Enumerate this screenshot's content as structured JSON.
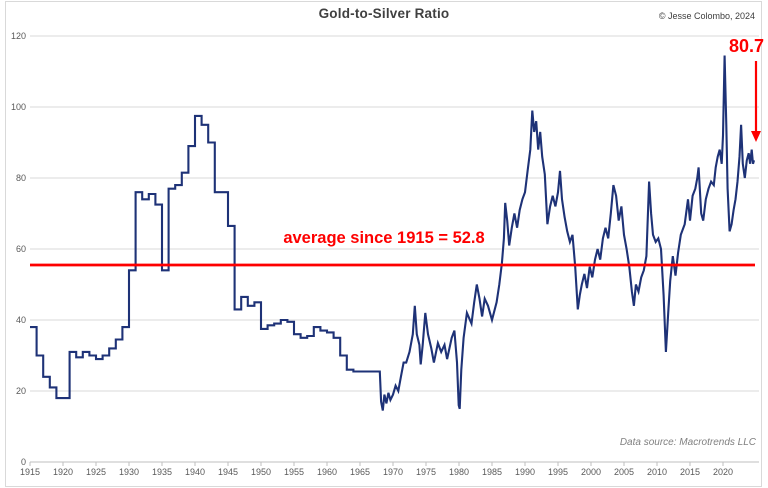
{
  "header": {
    "title": "Gold-to-Silver Ratio",
    "copyright": "© Jesse Colombo, 2024"
  },
  "annotations": {
    "average_label": "average since 1915 = 52.8",
    "latest_label": "80.7"
  },
  "footer": {
    "source": "Data source: Macrotrends LLC"
  },
  "colors": {
    "line": "#1e3277",
    "accent_red": "#fe0000",
    "grid": "#d9d9d9",
    "tick": "#bfbfbf",
    "axis_text": "#595959"
  },
  "chart_data": {
    "type": "line",
    "title": "Gold-to-Silver Ratio",
    "xlabel": "",
    "ylabel": "",
    "xlim": [
      1915,
      2025.2
    ],
    "ylim": [
      0,
      120
    ],
    "grid": "horizontal",
    "legend": "none",
    "x_ticks": [
      1915,
      1920,
      1925,
      1930,
      1935,
      1940,
      1945,
      1950,
      1955,
      1960,
      1965,
      1970,
      1975,
      1980,
      1985,
      1990,
      1995,
      2000,
      2005,
      2010,
      2015,
      2020
    ],
    "y_ticks": [
      0,
      20,
      40,
      60,
      80,
      100,
      120
    ],
    "average_line": {
      "value": 52.8,
      "display_value": 55.5,
      "label": "average since 1915 = 52.8"
    },
    "latest_value": 80.7,
    "annual_series_start": 1915,
    "annual_series": [
      38,
      30,
      24,
      21,
      18,
      18,
      31,
      29.5,
      31,
      30,
      29,
      30,
      32,
      34.5,
      38,
      54,
      76,
      74,
      75.5,
      72.5,
      54,
      77,
      78,
      81.5,
      89,
      97.5,
      95,
      90,
      76,
      76,
      66.5,
      43,
      46.5,
      44,
      45,
      37.5,
      38.5,
      39,
      40,
      39.5,
      36,
      35,
      35.5,
      38,
      37,
      36.5,
      35,
      30,
      26,
      25.5,
      25.5,
      25.5,
      25.5
    ],
    "monthly_series": [
      [
        1968.0,
        25.5
      ],
      [
        1968.2,
        17
      ],
      [
        1968.45,
        14.5
      ],
      [
        1968.7,
        19
      ],
      [
        1969.0,
        16.5
      ],
      [
        1969.3,
        19.5
      ],
      [
        1969.6,
        17.5
      ],
      [
        1970.0,
        19
      ],
      [
        1970.4,
        21.5
      ],
      [
        1970.8,
        20
      ],
      [
        1971.2,
        24
      ],
      [
        1971.6,
        28
      ],
      [
        1972.0,
        28
      ],
      [
        1972.5,
        31
      ],
      [
        1973.0,
        36
      ],
      [
        1973.3,
        44
      ],
      [
        1973.6,
        36
      ],
      [
        1974.0,
        33
      ],
      [
        1974.2,
        27.5
      ],
      [
        1974.5,
        33
      ],
      [
        1974.9,
        42
      ],
      [
        1975.3,
        36
      ],
      [
        1975.8,
        32
      ],
      [
        1976.2,
        28
      ],
      [
        1976.8,
        33.5
      ],
      [
        1977.3,
        31
      ],
      [
        1977.8,
        33
      ],
      [
        1978.2,
        29
      ],
      [
        1978.9,
        35
      ],
      [
        1979.3,
        37
      ],
      [
        1979.7,
        28
      ],
      [
        1979.95,
        16
      ],
      [
        1980.1,
        15
      ],
      [
        1980.35,
        26
      ],
      [
        1980.7,
        35
      ],
      [
        1981.2,
        42
      ],
      [
        1981.9,
        39
      ],
      [
        1982.3,
        45
      ],
      [
        1982.7,
        50
      ],
      [
        1983.1,
        46
      ],
      [
        1983.5,
        41
      ],
      [
        1983.9,
        46
      ],
      [
        1984.4,
        44
      ],
      [
        1985.0,
        40
      ],
      [
        1985.7,
        45
      ],
      [
        1986.1,
        50
      ],
      [
        1986.5,
        56
      ],
      [
        1986.8,
        63
      ],
      [
        1987.0,
        73
      ],
      [
        1987.3,
        68
      ],
      [
        1987.6,
        61
      ],
      [
        1988.0,
        66
      ],
      [
        1988.4,
        70
      ],
      [
        1988.8,
        66
      ],
      [
        1989.2,
        71
      ],
      [
        1989.6,
        74
      ],
      [
        1990.0,
        76
      ],
      [
        1990.4,
        82
      ],
      [
        1990.8,
        88
      ],
      [
        1991.1,
        99
      ],
      [
        1991.4,
        93
      ],
      [
        1991.7,
        96
      ],
      [
        1992.0,
        88
      ],
      [
        1992.3,
        93
      ],
      [
        1992.6,
        86
      ],
      [
        1993.0,
        81
      ],
      [
        1993.4,
        67
      ],
      [
        1993.8,
        72
      ],
      [
        1994.2,
        75
      ],
      [
        1994.6,
        72
      ],
      [
        1995.0,
        76
      ],
      [
        1995.3,
        82
      ],
      [
        1995.6,
        74
      ],
      [
        1996.0,
        69
      ],
      [
        1996.4,
        65
      ],
      [
        1996.8,
        62
      ],
      [
        1997.2,
        64
      ],
      [
        1997.6,
        55
      ],
      [
        1998.0,
        43
      ],
      [
        1998.3,
        47
      ],
      [
        1998.6,
        50
      ],
      [
        1999.0,
        53
      ],
      [
        1999.4,
        49
      ],
      [
        1999.8,
        55
      ],
      [
        2000.2,
        52
      ],
      [
        2000.6,
        57
      ],
      [
        2001.0,
        60
      ],
      [
        2001.4,
        57
      ],
      [
        2001.8,
        63
      ],
      [
        2002.2,
        66
      ],
      [
        2002.6,
        63
      ],
      [
        2003.0,
        70
      ],
      [
        2003.4,
        78
      ],
      [
        2003.8,
        75
      ],
      [
        2004.2,
        68
      ],
      [
        2004.6,
        72
      ],
      [
        2005.0,
        64
      ],
      [
        2005.4,
        60
      ],
      [
        2005.8,
        55
      ],
      [
        2006.2,
        48
      ],
      [
        2006.5,
        44
      ],
      [
        2006.8,
        50
      ],
      [
        2007.2,
        48
      ],
      [
        2007.6,
        52
      ],
      [
        2008.0,
        54
      ],
      [
        2008.4,
        58
      ],
      [
        2008.8,
        79
      ],
      [
        2009.1,
        70
      ],
      [
        2009.4,
        64
      ],
      [
        2009.8,
        62
      ],
      [
        2010.2,
        63
      ],
      [
        2010.6,
        60
      ],
      [
        2011.0,
        47
      ],
      [
        2011.35,
        31
      ],
      [
        2011.7,
        42
      ],
      [
        2012.0,
        51
      ],
      [
        2012.4,
        58
      ],
      [
        2012.8,
        52.5
      ],
      [
        2013.2,
        59
      ],
      [
        2013.6,
        64
      ],
      [
        2014.2,
        67
      ],
      [
        2014.7,
        74
      ],
      [
        2015.0,
        68
      ],
      [
        2015.4,
        75
      ],
      [
        2015.8,
        77
      ],
      [
        2016.1,
        80
      ],
      [
        2016.3,
        83
      ],
      [
        2016.7,
        70
      ],
      [
        2017.0,
        68
      ],
      [
        2017.4,
        74
      ],
      [
        2017.8,
        77
      ],
      [
        2018.2,
        79
      ],
      [
        2018.6,
        78
      ],
      [
        2018.9,
        83
      ],
      [
        2019.2,
        86
      ],
      [
        2019.5,
        88
      ],
      [
        2019.8,
        84
      ],
      [
        2020.0,
        92
      ],
      [
        2020.25,
        114.5
      ],
      [
        2020.5,
        95
      ],
      [
        2020.7,
        77
      ],
      [
        2021.0,
        65
      ],
      [
        2021.3,
        67
      ],
      [
        2021.6,
        71
      ],
      [
        2021.9,
        74
      ],
      [
        2022.2,
        79
      ],
      [
        2022.5,
        86
      ],
      [
        2022.75,
        95
      ],
      [
        2023.0,
        84
      ],
      [
        2023.3,
        80
      ],
      [
        2023.6,
        85
      ],
      [
        2023.9,
        87
      ],
      [
        2024.1,
        84
      ],
      [
        2024.35,
        88
      ],
      [
        2024.55,
        84
      ],
      [
        2024.7,
        85
      ]
    ]
  }
}
